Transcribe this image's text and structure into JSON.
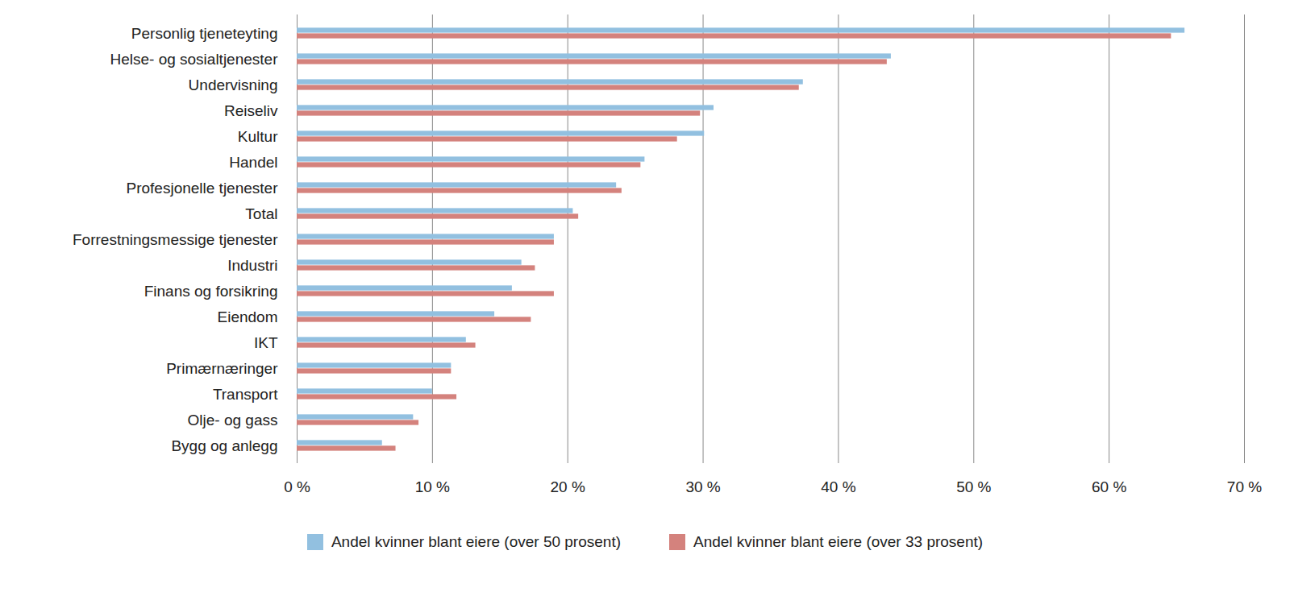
{
  "chart_data": {
    "type": "bar",
    "orientation": "horizontal",
    "categories": [
      "Personlig tjeneteyting",
      "Helse- og sosialtjenester",
      "Undervisning",
      "Reiseliv",
      "Kultur",
      "Handel",
      "Profesjonelle tjenester",
      "Total",
      "Forrestningsmessige tjenester",
      "Industri",
      "Finans og forsikring",
      "Eiendom",
      "IKT",
      "Primærnæringer",
      "Transport",
      "Olje- og gass",
      "Bygg og anlegg"
    ],
    "series": [
      {
        "name": "Andel kvinner blant eiere (over 50 prosent)",
        "color": "#92c0e0",
        "values": [
          65.6,
          43.9,
          37.4,
          30.8,
          30.1,
          25.7,
          23.6,
          20.4,
          19.0,
          16.6,
          15.9,
          14.6,
          12.5,
          11.4,
          10.0,
          8.6,
          6.3
        ]
      },
      {
        "name": "Andel kvinner blant eiere (over 33 prosent)",
        "color": "#d4827d",
        "values": [
          64.6,
          43.6,
          37.1,
          29.8,
          28.1,
          25.4,
          24.0,
          20.8,
          19.0,
          17.6,
          19.0,
          17.3,
          13.2,
          11.4,
          11.8,
          9.0,
          7.3
        ]
      }
    ],
    "xlim": [
      0,
      70
    ],
    "xticks": [
      {
        "value": 0,
        "label": "0 %"
      },
      {
        "value": 10,
        "label": "10 %"
      },
      {
        "value": 20,
        "label": "20 %"
      },
      {
        "value": 30,
        "label": "30 %"
      },
      {
        "value": 40,
        "label": "40 %"
      },
      {
        "value": 50,
        "label": "50 %"
      },
      {
        "value": 60,
        "label": "60 %"
      },
      {
        "value": 70,
        "label": "70 %"
      }
    ],
    "grid": true,
    "legend": "bottom"
  }
}
